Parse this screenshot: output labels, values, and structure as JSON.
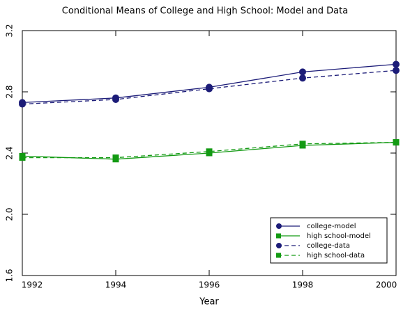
{
  "chart_data": {
    "type": "line",
    "title": "Conditional Means of College and High School: Model and Data",
    "x_label": "Year",
    "x": [
      1992,
      1994,
      1996,
      1998,
      2000
    ],
    "xlim": [
      1992,
      2000
    ],
    "xticks": [
      1992,
      1994,
      1996,
      1998,
      2000
    ],
    "ylim": [
      1.6,
      3.2
    ],
    "yticks": [
      1.6,
      {
        "value": 2,
        "label": "2.0"
      },
      2.4,
      2.8,
      3.2
    ],
    "legend": "lower right",
    "series": [
      {
        "name": "college-model",
        "color": "#1c1c78",
        "marker": "circle",
        "linestyle": "solid",
        "values": [
          2.73,
          2.76,
          2.83,
          2.93,
          2.98
        ]
      },
      {
        "name": "high school-model",
        "color": "#139a13",
        "marker": "square",
        "linestyle": "solid",
        "values": [
          2.38,
          2.36,
          2.4,
          2.45,
          2.47
        ]
      },
      {
        "name": "college-data",
        "color": "#1c1c78",
        "marker": "circle",
        "linestyle": "dashed",
        "values": [
          2.72,
          2.75,
          2.82,
          2.89,
          2.94
        ]
      },
      {
        "name": "high school-data",
        "color": "#139a13",
        "marker": "square",
        "linestyle": "dashed",
        "values": [
          2.37,
          2.37,
          2.41,
          2.46,
          2.47
        ]
      }
    ]
  }
}
